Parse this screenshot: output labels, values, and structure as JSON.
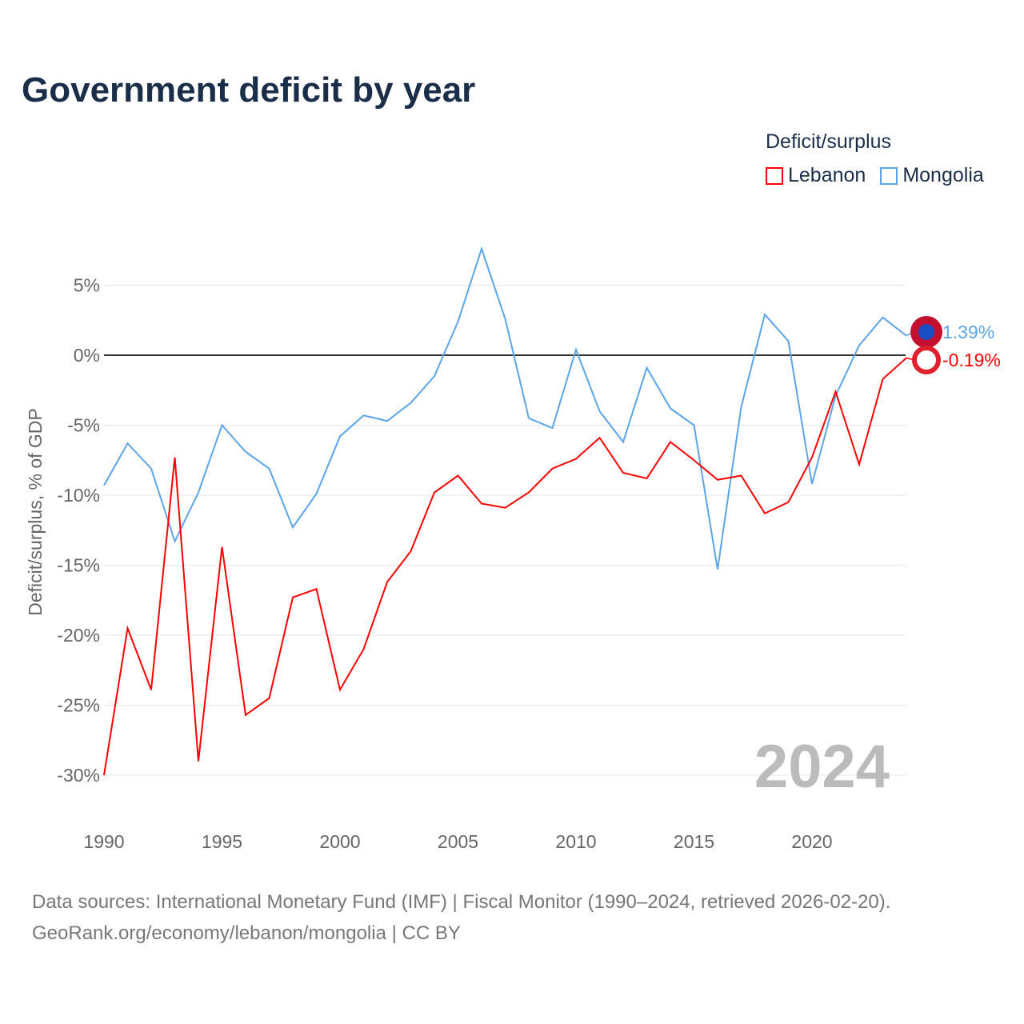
{
  "title": "Government deficit by year",
  "legend": {
    "title": "Deficit/surplus",
    "items": [
      {
        "name": "Lebanon",
        "color": "#ff0000"
      },
      {
        "name": "Mongolia",
        "color": "#5ba4e8"
      }
    ]
  },
  "footer": {
    "line1": "Data sources: International Monetary Fund (IMF) | Fiscal Monitor (1990–2024, retrieved 2026-02-20).",
    "line2": "GeoRank.org/economy/lebanon/mongolia | CC BY"
  },
  "chart_data": {
    "type": "line",
    "title": "Government deficit by year",
    "xlabel": "",
    "ylabel": "Deficit/surplus, % of GDP",
    "xlim": [
      1990,
      2024
    ],
    "ylim": [
      -30,
      8
    ],
    "x_ticks": [
      "1990",
      "1995",
      "2000",
      "2005",
      "2010",
      "2015",
      "2020"
    ],
    "y_ticks": [
      {
        "v": 5,
        "label": "5%"
      },
      {
        "v": 0,
        "label": "0%"
      },
      {
        "v": -5,
        "label": "-5%"
      },
      {
        "v": -10,
        "label": "-10%"
      },
      {
        "v": -15,
        "label": "-15%"
      },
      {
        "v": -20,
        "label": "-20%"
      },
      {
        "v": -25,
        "label": "-25%"
      },
      {
        "v": -30,
        "label": "-30%"
      }
    ],
    "year_watermark": "2024",
    "x": [
      1990,
      1991,
      1992,
      1993,
      1994,
      1995,
      1996,
      1997,
      1998,
      1999,
      2000,
      2001,
      2002,
      2003,
      2004,
      2005,
      2006,
      2007,
      2008,
      2009,
      2010,
      2011,
      2012,
      2013,
      2014,
      2015,
      2016,
      2017,
      2018,
      2019,
      2020,
      2021,
      2022,
      2023,
      2024
    ],
    "series": [
      {
        "name": "Lebanon",
        "color": "#ff0000",
        "end_label": "-0.19%",
        "values": [
          -30.0,
          -19.5,
          -23.9,
          -7.3,
          -29.0,
          -13.7,
          -25.7,
          -24.5,
          -17.3,
          -16.7,
          -23.9,
          -21.0,
          -16.2,
          -14.0,
          -9.8,
          -8.6,
          -10.6,
          -10.9,
          -9.8,
          -8.1,
          -7.4,
          -5.9,
          -8.4,
          -8.8,
          -6.2,
          -7.5,
          -8.9,
          -8.6,
          -11.3,
          -10.5,
          -7.3,
          -2.6,
          -7.8,
          -1.7,
          -0.19
        ]
      },
      {
        "name": "Mongolia",
        "color": "#5ba4e8",
        "end_label": "1.39%",
        "values": [
          -9.3,
          -6.3,
          -8.1,
          -13.3,
          -9.8,
          -5.0,
          -6.9,
          -8.1,
          -12.3,
          -9.9,
          -5.8,
          -4.3,
          -4.7,
          -3.4,
          -1.5,
          2.4,
          7.6,
          2.6,
          -4.5,
          -5.2,
          0.4,
          -4.0,
          -6.2,
          -0.9,
          -3.8,
          -5.0,
          -15.3,
          -3.7,
          2.9,
          1.0,
          -9.2,
          -2.9,
          0.7,
          2.7,
          1.39
        ]
      }
    ]
  }
}
